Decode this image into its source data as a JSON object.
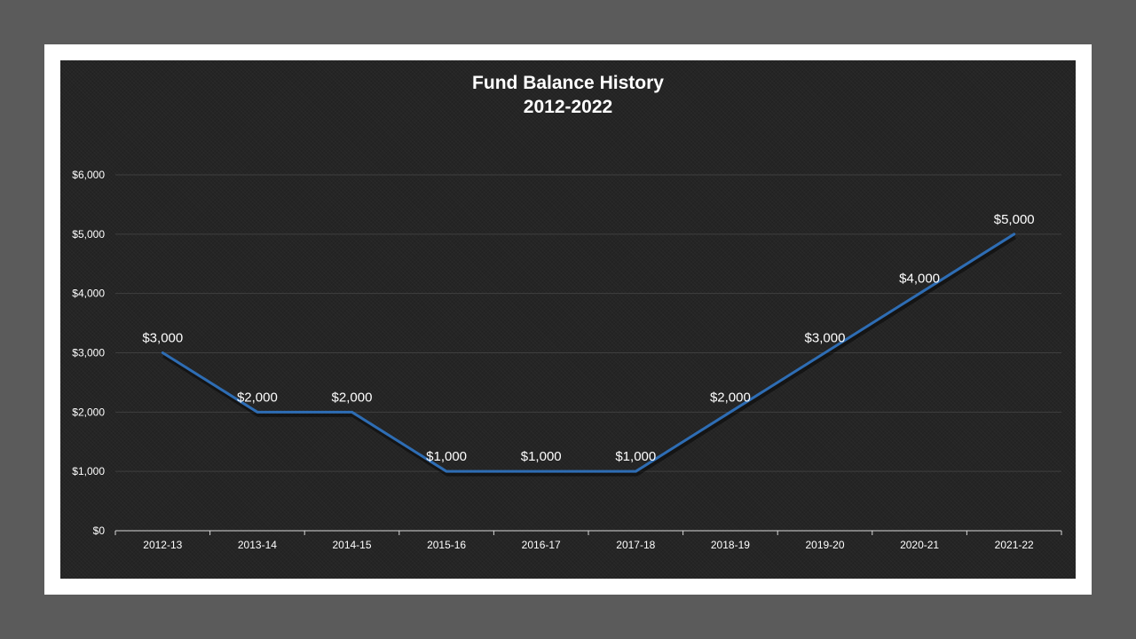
{
  "chart_data": {
    "type": "line",
    "title": "Fund Balance History",
    "subtitle": "2012-2022",
    "categories": [
      "2012-13",
      "2013-14",
      "2014-15",
      "2015-16",
      "2016-17",
      "2017-18",
      "2018-19",
      "2019-20",
      "2020-21",
      "2021-22"
    ],
    "series": [
      {
        "values": [
          3000,
          2000,
          2000,
          1000,
          1000,
          1000,
          2000,
          3000,
          4000,
          5000
        ],
        "color": "#2e6db4"
      }
    ],
    "data_labels": [
      "$3,000",
      "$2,000",
      "$2,000",
      "$1,000",
      "$1,000",
      "$1,000",
      "$2,000",
      "$3,000",
      "$4,000",
      "$5,000"
    ],
    "y_ticks": [
      0,
      1000,
      2000,
      3000,
      4000,
      5000,
      6000
    ],
    "y_tick_labels": [
      "$0",
      "$1,000",
      "$2,000",
      "$3,000",
      "$4,000",
      "$5,000",
      "$6,000"
    ],
    "ylim": [
      0,
      6000
    ],
    "xlabel": "",
    "ylabel": "",
    "grid": true,
    "legend": "none"
  },
  "colors": {
    "page_background": "#5b5b5b",
    "frame": "#ffffff",
    "plot_background": "#252525",
    "gridline": "#3f3f3f",
    "axis": "#d9d9d9",
    "text": "#ffffff",
    "line": "#2e6db4"
  }
}
